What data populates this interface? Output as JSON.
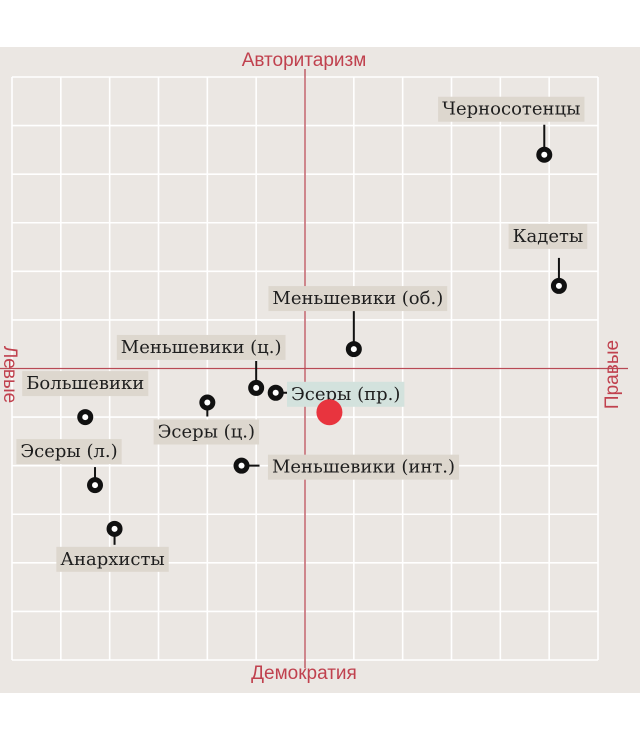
{
  "colors": {
    "background": "#ebe7e3",
    "grid": "#ffffff",
    "axis": "#b84a55",
    "axis_title": "#c0414e",
    "label_bg": "#ddd7ce",
    "highlight_bg": "#d3e2dd",
    "marker": "#111111",
    "self_marker": "#e8343e"
  },
  "chart_data": {
    "type": "scatter",
    "axis_titles": {
      "top": "Авторитаризм",
      "bottom": "Демократия",
      "left": "Левые",
      "right": "Правые"
    },
    "xlim": [
      -6,
      6
    ],
    "ylim": [
      -6,
      6
    ],
    "grid": true,
    "points": [
      {
        "label": "Черносотенцы",
        "x": 4.9,
        "y": 4.4
      },
      {
        "label": "Кадеты",
        "x": 5.2,
        "y": 1.7
      },
      {
        "label": "Меньшевики (об.)",
        "x": 1.0,
        "y": 0.4
      },
      {
        "label": "Меньшевики (ц.)",
        "x": -1.0,
        "y": -0.4
      },
      {
        "label": "Эсеры (пр.)",
        "x": -0.6,
        "y": -0.5
      },
      {
        "label": "Большевики",
        "x": -4.5,
        "y": -1.0
      },
      {
        "label": "Эсеры (ц.)",
        "x": -2.0,
        "y": -0.7
      },
      {
        "label": "Эсеры (л.)",
        "x": -4.3,
        "y": -2.4
      },
      {
        "label": "Меньшевики (инт.)",
        "x": -1.3,
        "y": -2.0
      },
      {
        "label": "Анархисты",
        "x": -3.9,
        "y": -3.3
      }
    ],
    "reference_point": {
      "x": 0.5,
      "y": -0.9
    }
  }
}
